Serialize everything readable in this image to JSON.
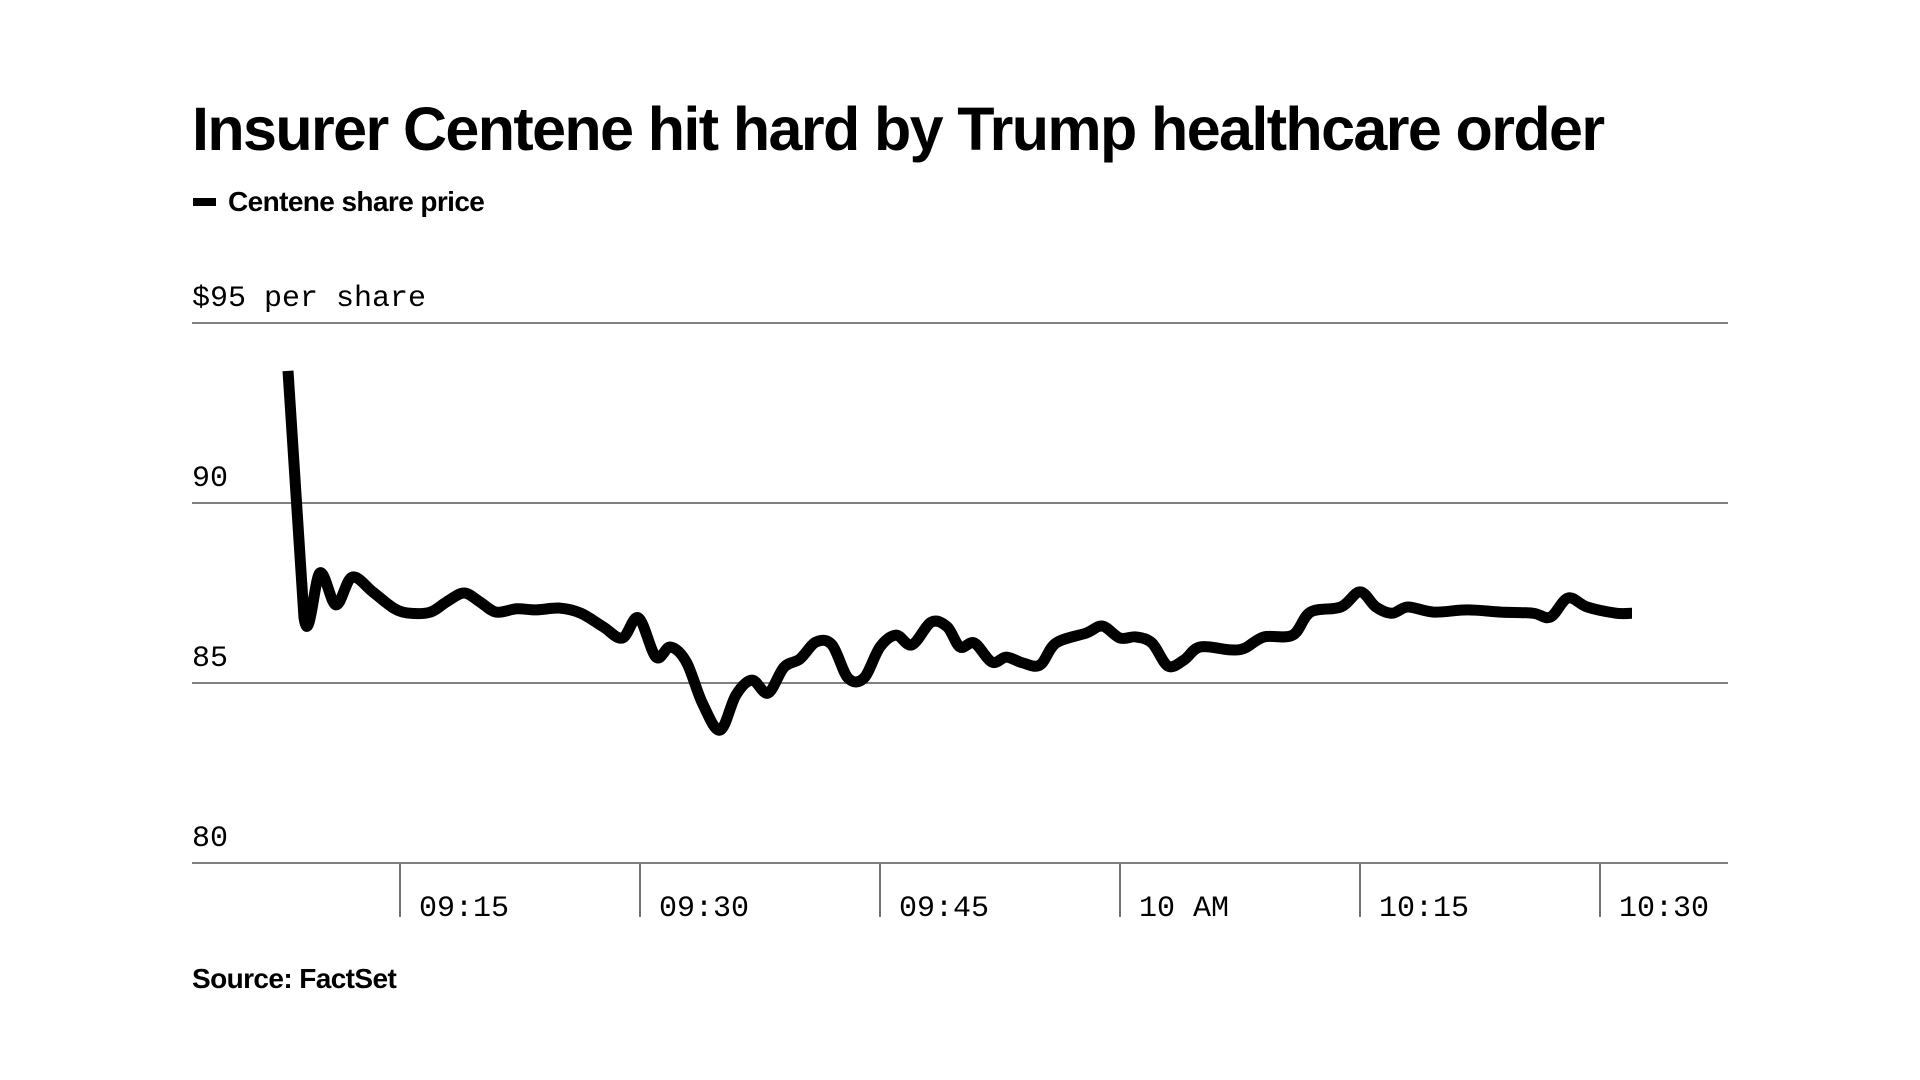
{
  "header": {
    "title": "Insurer Centene hit hard by Trump healthcare order",
    "legend_label": "Centene share price"
  },
  "footer": {
    "source": "Source: FactSet"
  },
  "colors": {
    "line": "#000000",
    "grid": "#808080",
    "background": "#ffffff"
  },
  "chart_data": {
    "type": "line",
    "title": "Insurer Centene hit hard by Trump healthcare order",
    "xlabel": "",
    "ylabel": "$ per share",
    "legend": {
      "entries": [
        "Centene share price"
      ],
      "position": "top-left"
    },
    "grid": true,
    "ylim": [
      80,
      95
    ],
    "xlim_minutes_after_0900": [
      0,
      96
    ],
    "y_ticks": [
      {
        "value": 95,
        "label": "$95 per share"
      },
      {
        "value": 90,
        "label": "90"
      },
      {
        "value": 85,
        "label": "85"
      },
      {
        "value": 80,
        "label": "80"
      }
    ],
    "x_ticks": [
      {
        "minutes": 15,
        "label": "09:15"
      },
      {
        "minutes": 30,
        "label": "09:30"
      },
      {
        "minutes": 45,
        "label": "09:45"
      },
      {
        "minutes": 60,
        "label": "10 AM"
      },
      {
        "minutes": 75,
        "label": "10:15"
      },
      {
        "minutes": 90,
        "label": "10:30"
      }
    ],
    "series": [
      {
        "name": "Centene share price",
        "x_minutes_after_0900": [
          8.0,
          9.0,
          10.0,
          11.0,
          12.0,
          13.3,
          14.6,
          15.6,
          16.9,
          17.9,
          19.0,
          20.0,
          21.0,
          22.3,
          23.5,
          25.0,
          26.3,
          27.7,
          28.9,
          29.9,
          31.0,
          31.9,
          32.9,
          33.9,
          35.0,
          36.0,
          37.0,
          38.0,
          39.0,
          40.0,
          41.0,
          42.0,
          43.0,
          44.0,
          45.0,
          46.0,
          47.0,
          48.2,
          49.2,
          50.0,
          50.9,
          52.0,
          52.9,
          53.9,
          55.0,
          56.0,
          57.9,
          58.9,
          60.0,
          61.0,
          62.0,
          63.0,
          64.0,
          65.0,
          66.9,
          67.8,
          69.0,
          70.8,
          71.9,
          73.8,
          75.0,
          76.0,
          77.0,
          78.0,
          79.6,
          81.7,
          83.8,
          85.8,
          86.9,
          88.0,
          89.2,
          91.0,
          92.0
        ],
        "values": [
          93.67,
          86.81,
          88.06,
          87.17,
          87.94,
          87.53,
          87.08,
          86.94,
          86.97,
          87.25,
          87.5,
          87.25,
          86.97,
          87.06,
          87.03,
          87.08,
          86.94,
          86.56,
          86.25,
          86.81,
          85.72,
          86.0,
          85.58,
          84.44,
          83.69,
          84.67,
          85.08,
          84.72,
          85.44,
          85.67,
          86.14,
          86.06,
          85.14,
          85.14,
          86.0,
          86.33,
          86.06,
          86.69,
          86.56,
          86.0,
          86.11,
          85.58,
          85.72,
          85.56,
          85.5,
          86.11,
          86.39,
          86.58,
          86.25,
          86.28,
          86.11,
          85.47,
          85.64,
          86.0,
          85.92,
          85.97,
          86.28,
          86.33,
          86.97,
          87.11,
          87.53,
          87.11,
          86.94,
          87.11,
          86.97,
          87.03,
          86.97,
          86.94,
          86.83,
          87.36,
          87.11,
          86.94,
          86.94
        ]
      }
    ]
  }
}
